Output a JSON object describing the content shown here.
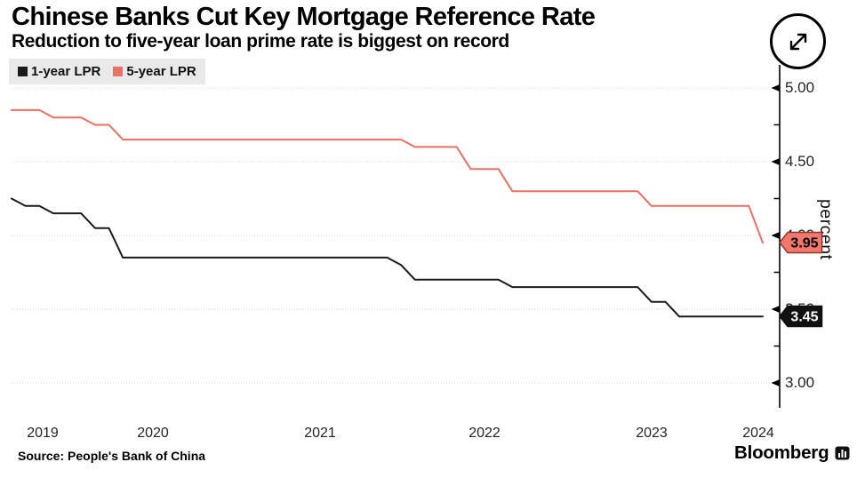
{
  "header": {
    "title": "Chinese Banks Cut Key Mortgage Reference Rate",
    "subtitle": "Reduction to five-year loan prime rate is biggest on record"
  },
  "legend": {
    "items": [
      {
        "label": "1-year LPR",
        "color": "#1a1a1a"
      },
      {
        "label": "5-year LPR",
        "color": "#ee6f63"
      }
    ]
  },
  "chart_data": {
    "type": "line",
    "title": "Chinese Banks Cut Key Mortgage Reference Rate",
    "subtitle": "Reduction to five-year loan prime rate is biggest on record",
    "y_axis_title": "percent",
    "x_tick_labels": [
      "2019",
      "2020",
      "2021",
      "2022",
      "2023",
      "2024"
    ],
    "y_ticks": [
      5.0,
      4.5,
      4.0,
      3.5,
      3.0
    ],
    "y_minor_ticks": [
      4.75,
      4.25,
      3.75,
      3.25
    ],
    "ylim": [
      2.83,
      5.16
    ],
    "x_range": [
      "2019-08",
      "2024-02"
    ],
    "grid": "horizontal-dotted",
    "legend_position": "top-left",
    "series": [
      {
        "name": "1-year LPR",
        "color": "#1a1a1a",
        "points": [
          [
            "2019-08",
            4.25
          ],
          [
            "2019-09",
            4.2
          ],
          [
            "2019-10",
            4.2
          ],
          [
            "2019-11",
            4.15
          ],
          [
            "2020-01",
            4.15
          ],
          [
            "2020-02",
            4.05
          ],
          [
            "2020-03",
            4.05
          ],
          [
            "2020-04",
            3.85
          ],
          [
            "2021-11",
            3.85
          ],
          [
            "2021-12",
            3.8
          ],
          [
            "2022-01",
            3.7
          ],
          [
            "2022-07",
            3.7
          ],
          [
            "2022-08",
            3.65
          ],
          [
            "2023-05",
            3.65
          ],
          [
            "2023-06",
            3.55
          ],
          [
            "2023-07",
            3.55
          ],
          [
            "2023-08",
            3.45
          ],
          [
            "2024-02",
            3.45
          ]
        ]
      },
      {
        "name": "5-year LPR",
        "color": "#ee6f63",
        "points": [
          [
            "2019-08",
            4.85
          ],
          [
            "2019-10",
            4.85
          ],
          [
            "2019-11",
            4.8
          ],
          [
            "2020-01",
            4.8
          ],
          [
            "2020-02",
            4.75
          ],
          [
            "2020-03",
            4.75
          ],
          [
            "2020-04",
            4.65
          ],
          [
            "2021-12",
            4.65
          ],
          [
            "2022-01",
            4.6
          ],
          [
            "2022-04",
            4.6
          ],
          [
            "2022-05",
            4.45
          ],
          [
            "2022-07",
            4.45
          ],
          [
            "2022-08",
            4.3
          ],
          [
            "2023-05",
            4.3
          ],
          [
            "2023-06",
            4.2
          ],
          [
            "2024-01",
            4.2
          ],
          [
            "2024-02",
            3.95
          ]
        ]
      }
    ],
    "end_labels": [
      {
        "series": "5-year LPR",
        "text": "3.95",
        "value": 3.95,
        "bg": "#f2786e",
        "border": "#8e352c",
        "text_color": "#000000"
      },
      {
        "series": "1-year LPR",
        "text": "3.45",
        "value": 3.45,
        "bg": "#111111",
        "border": "#111111",
        "text_color": "#ffffff"
      }
    ]
  },
  "footer": {
    "source": "Source: People's Bank of China",
    "brand": "Bloomberg"
  },
  "controls": {
    "expand_button": "expand-chart"
  }
}
